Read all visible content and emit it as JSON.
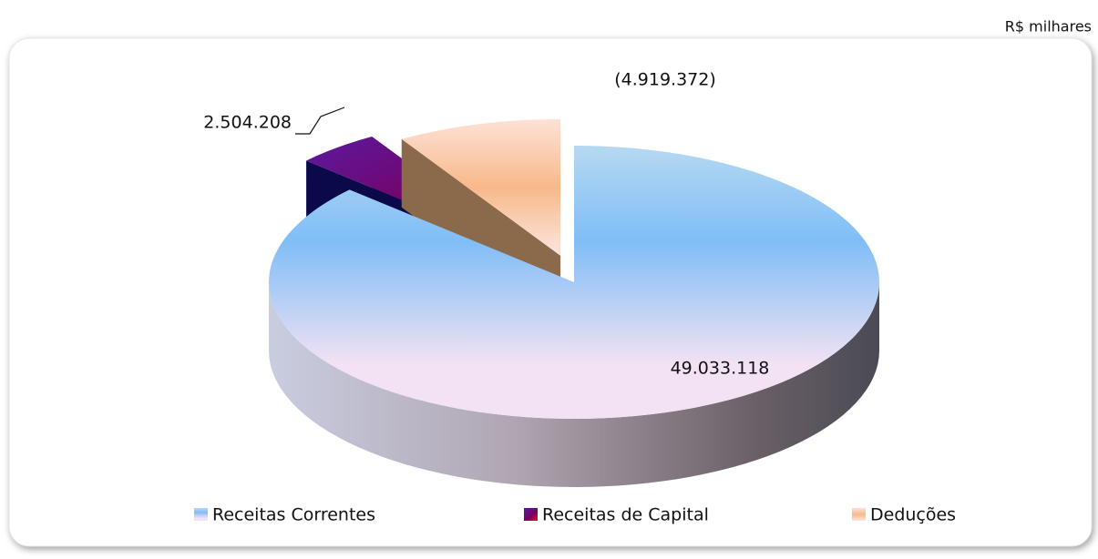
{
  "chart_data": {
    "type": "pie",
    "subtitle": "R$ milhares",
    "categories": [
      "Receitas Correntes",
      "Receitas de Capital",
      "Deduções"
    ],
    "values": [
      49033118,
      2504208,
      -4919372
    ],
    "value_labels": [
      "49.033.118",
      "2.504.208",
      "(4.919.372)"
    ],
    "colors": [
      "#8ec2f2",
      "#3a0a6e",
      "#f7b98a"
    ],
    "legend": "bottom"
  }
}
